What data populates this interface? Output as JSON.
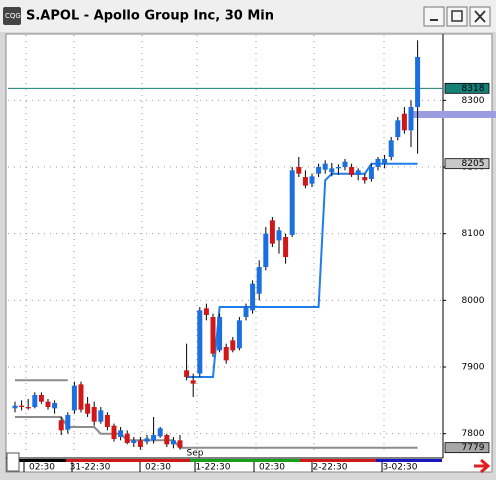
{
  "chart_data": {
    "type": "candlestick",
    "title": "S.APOL - Apollo Group Inc, 30 Min",
    "open": [
      7838,
      7842,
      7840,
      7840,
      7858,
      7848,
      7838,
      7820,
      7806,
      7835,
      7874,
      7845,
      7840,
      7818,
      7828,
      7812,
      7795,
      7800,
      7786,
      7790,
      7788,
      7790,
      7796,
      7798,
      7784,
      7790,
      7895,
      7880,
      7890,
      7988,
      7975,
      7925,
      7930,
      7940,
      7928,
      7975,
      7985,
      8010,
      8050,
      8120,
      8090,
      8095,
      8098,
      8200,
      8185,
      8175,
      8190,
      8196,
      8192,
      8198,
      8200,
      8200,
      8188,
      8185,
      8182,
      8200,
      8205,
      8215,
      8245,
      8280,
      8255,
      8290
    ],
    "high": [
      7848,
      7850,
      7852,
      7862,
      7862,
      7852,
      7850,
      7825,
      7832,
      7878,
      7878,
      7855,
      7848,
      7840,
      7832,
      7815,
      7810,
      7805,
      7795,
      7795,
      7798,
      7825,
      7810,
      7800,
      7795,
      7798,
      7935,
      7890,
      7990,
      7995,
      7980,
      7980,
      7935,
      7945,
      7975,
      7995,
      8030,
      8060,
      8110,
      8125,
      8110,
      8100,
      8200,
      8215,
      8195,
      8190,
      8205,
      8210,
      8206,
      8204,
      8212,
      8205,
      8198,
      8190,
      8205,
      8215,
      8218,
      8245,
      8275,
      8290,
      8300,
      8390
    ],
    "low": [
      7832,
      7835,
      7836,
      7838,
      7845,
      7836,
      7830,
      7798,
      7800,
      7830,
      7832,
      7825,
      7812,
      7815,
      7805,
      7788,
      7790,
      7784,
      7780,
      7776,
      7784,
      7785,
      7794,
      7780,
      7778,
      7776,
      7880,
      7855,
      7885,
      7970,
      7915,
      7922,
      7905,
      7922,
      7925,
      7970,
      7980,
      8000,
      8045,
      8080,
      8070,
      8055,
      8095,
      8185,
      8168,
      8170,
      8185,
      8190,
      8186,
      8188,
      8195,
      8185,
      8180,
      8175,
      8178,
      8195,
      8198,
      8210,
      8240,
      8250,
      8230,
      8220
    ],
    "close": [
      7842,
      7840,
      7838,
      7858,
      7848,
      7840,
      7846,
      7805,
      7828,
      7872,
      7836,
      7830,
      7818,
      7835,
      7810,
      7792,
      7805,
      7786,
      7790,
      7780,
      7793,
      7798,
      7808,
      7784,
      7790,
      7779,
      7885,
      7875,
      7985,
      7978,
      7920,
      7975,
      7910,
      7925,
      7970,
      7990,
      8025,
      8050,
      8100,
      8085,
      8105,
      8065,
      8195,
      8190,
      8172,
      8186,
      8200,
      8205,
      8198,
      8200,
      8208,
      8188,
      8195,
      8180,
      8200,
      8212,
      8212,
      8240,
      8270,
      8255,
      8290,
      8365
    ],
    "up_color": "#1c6fe0",
    "down_color": "#d01818",
    "lines": [
      {
        "color": "#1e7fe8",
        "values": [
          null,
          null,
          null,
          null,
          null,
          null,
          null,
          null,
          null,
          null,
          null,
          null,
          null,
          null,
          null,
          null,
          null,
          null,
          null,
          null,
          null,
          null,
          null,
          null,
          null,
          null,
          7885,
          7885,
          7885,
          7885,
          7885,
          7990,
          7990,
          7990,
          7990,
          7990,
          7990,
          7990,
          7990,
          7990,
          7990,
          7990,
          7990,
          7990,
          7990,
          7990,
          7990,
          8180,
          8190,
          8190,
          8190,
          8190,
          8190,
          8190,
          8205,
          8205,
          8205,
          8205,
          8205,
          8205,
          8205,
          8205
        ]
      },
      {
        "color": "#8c8c8c",
        "values": [
          7825,
          7825,
          7825,
          7825,
          7825,
          7825,
          7825,
          7825,
          7810,
          7810,
          7810,
          7810,
          7810,
          7800,
          7800,
          7800,
          7800,
          7790,
          7790,
          7790,
          7790,
          7790,
          7790,
          7790,
          7790,
          7779,
          7779,
          7779,
          7779,
          7779,
          7779,
          7779,
          7779,
          7779,
          7779,
          7779,
          7779,
          7779,
          7779,
          7779,
          7779,
          7779,
          7779,
          7779,
          7779,
          7779,
          7779,
          7779,
          7779,
          7779,
          7779,
          7779,
          7779,
          7779,
          7779,
          7779,
          7779,
          7779,
          7779,
          7779,
          7779,
          7779
        ]
      },
      {
        "color": "#8c8c8c",
        "values": [
          7880,
          7880,
          7880,
          7880,
          7880,
          7880,
          7880,
          7880,
          7880,
          null,
          null,
          null,
          null,
          null,
          null,
          null,
          null,
          null,
          null,
          null,
          null,
          null,
          null,
          null,
          null,
          null,
          null,
          null,
          null,
          null,
          null,
          null,
          null,
          null,
          null,
          null,
          null,
          null,
          null,
          null,
          null,
          null,
          null,
          null,
          null,
          null,
          null,
          null,
          null,
          null,
          null,
          null,
          null,
          null,
          null,
          null,
          null,
          null,
          null,
          null,
          null,
          null
        ]
      }
    ],
    "markers": [
      {
        "value": 8318,
        "color": "#148078",
        "line": true
      },
      {
        "value": 8205,
        "color": "#c8c8c8",
        "line": false
      },
      {
        "value": 7779,
        "color": "#a8a8a8",
        "line": false
      }
    ],
    "ylim": [
      7768,
      8398
    ],
    "yticks": [
      7800,
      7900,
      8000,
      8100,
      8200,
      8300
    ],
    "x_labels": [
      "02:30",
      "31-22:30",
      "02:30",
      "1-22:30",
      "02:30",
      "2-22:30",
      "3-02:30"
    ],
    "month_label": "Sep",
    "grid": true
  }
}
